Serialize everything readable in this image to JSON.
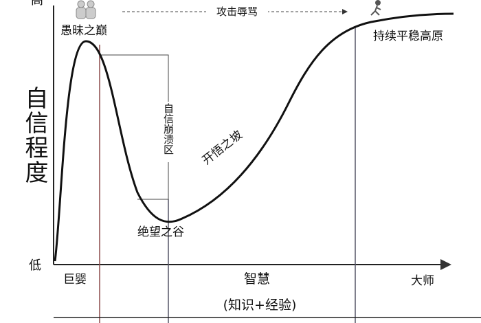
{
  "axis": {
    "high": "高",
    "low": "低",
    "y_label": "自信程度"
  },
  "stages": {
    "peak": "愚昧之巅",
    "attack": "攻击辱骂",
    "plateau": "持续平稳高原",
    "crash": "自信崩溃区",
    "slope": "开悟之坡",
    "valley": "绝望之谷"
  },
  "x_axis": {
    "novice": "巨婴",
    "wisdom": "智慧",
    "master": "大师",
    "note": "(知识+经验)"
  }
}
